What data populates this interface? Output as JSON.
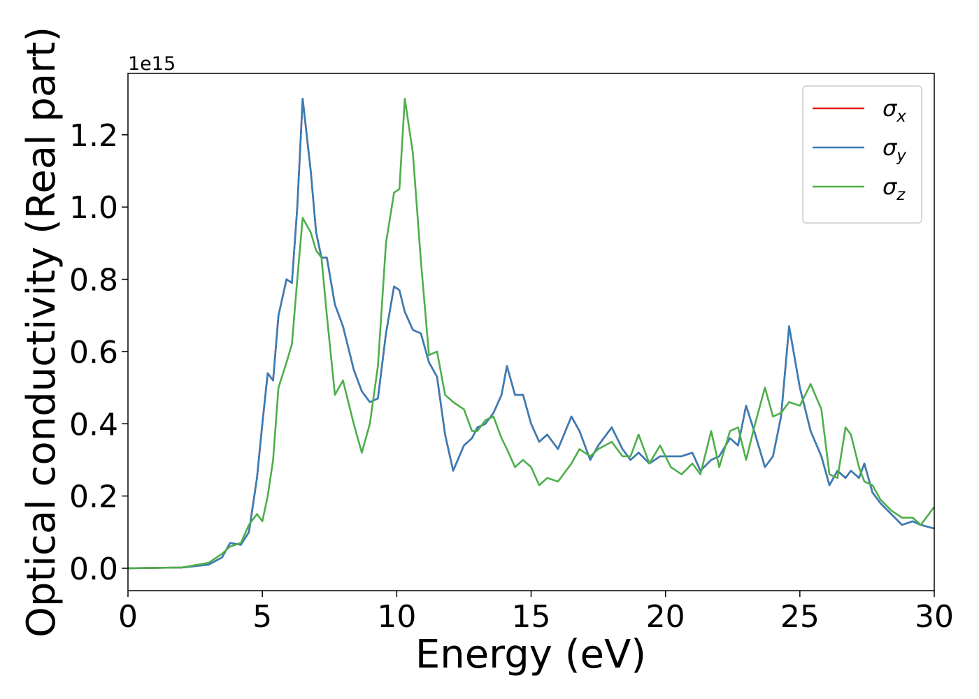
{
  "chart_data": {
    "type": "line",
    "xlabel": "Energy (eV)",
    "ylabel": "Optical conductivity (Real part)",
    "offset_text": "1e15",
    "x": [
      0,
      2,
      3,
      3.5,
      3.8,
      4.2,
      4.5,
      4.8,
      5.0,
      5.2,
      5.4,
      5.6,
      5.9,
      6.1,
      6.3,
      6.5,
      6.8,
      7.0,
      7.2,
      7.4,
      7.7,
      8.0,
      8.4,
      8.7,
      9.0,
      9.3,
      9.6,
      9.9,
      10.1,
      10.3,
      10.6,
      10.9,
      11.2,
      11.5,
      11.8,
      12.1,
      12.5,
      12.8,
      13.0,
      13.3,
      13.6,
      13.9,
      14.1,
      14.4,
      14.7,
      15.0,
      15.3,
      15.6,
      16.0,
      16.5,
      16.8,
      17.2,
      17.5,
      18.0,
      18.4,
      18.7,
      19.0,
      19.4,
      19.8,
      20.2,
      20.6,
      21.0,
      21.3,
      21.7,
      22.0,
      22.4,
      22.7,
      23.0,
      23.3,
      23.7,
      24.0,
      24.3,
      24.6,
      25.0,
      25.4,
      25.8,
      26.1,
      26.4,
      26.7,
      26.9,
      27.2,
      27.4,
      27.7,
      28.0,
      28.4,
      28.8,
      29.2,
      29.5,
      30.0
    ],
    "series": [
      {
        "name": "σx",
        "color": "#e41a1c",
        "values": [
          0,
          0.002,
          0.01,
          0.03,
          0.07,
          0.065,
          0.1,
          0.25,
          0.4,
          0.54,
          0.52,
          0.7,
          0.8,
          0.79,
          1.0,
          1.3,
          1.1,
          0.93,
          0.86,
          0.86,
          0.73,
          0.67,
          0.55,
          0.49,
          0.46,
          0.47,
          0.65,
          0.78,
          0.77,
          0.71,
          0.66,
          0.65,
          0.57,
          0.53,
          0.37,
          0.27,
          0.34,
          0.36,
          0.39,
          0.4,
          0.43,
          0.48,
          0.56,
          0.48,
          0.48,
          0.4,
          0.35,
          0.37,
          0.33,
          0.42,
          0.38,
          0.3,
          0.34,
          0.39,
          0.33,
          0.3,
          0.32,
          0.29,
          0.31,
          0.31,
          0.31,
          0.32,
          0.27,
          0.3,
          0.31,
          0.36,
          0.34,
          0.45,
          0.38,
          0.28,
          0.31,
          0.42,
          0.67,
          0.5,
          0.38,
          0.31,
          0.23,
          0.27,
          0.25,
          0.27,
          0.25,
          0.29,
          0.21,
          0.18,
          0.15,
          0.12,
          0.13,
          0.12,
          0.11
        ]
      },
      {
        "name": "σy",
        "color": "#377eb8",
        "values": [
          0,
          0.002,
          0.01,
          0.03,
          0.07,
          0.065,
          0.1,
          0.25,
          0.4,
          0.54,
          0.52,
          0.7,
          0.8,
          0.79,
          1.0,
          1.3,
          1.1,
          0.93,
          0.86,
          0.86,
          0.73,
          0.67,
          0.55,
          0.49,
          0.46,
          0.47,
          0.65,
          0.78,
          0.77,
          0.71,
          0.66,
          0.65,
          0.57,
          0.53,
          0.37,
          0.27,
          0.34,
          0.36,
          0.39,
          0.4,
          0.43,
          0.48,
          0.56,
          0.48,
          0.48,
          0.4,
          0.35,
          0.37,
          0.33,
          0.42,
          0.38,
          0.3,
          0.34,
          0.39,
          0.33,
          0.3,
          0.32,
          0.29,
          0.31,
          0.31,
          0.31,
          0.32,
          0.27,
          0.3,
          0.31,
          0.36,
          0.34,
          0.45,
          0.38,
          0.28,
          0.31,
          0.42,
          0.67,
          0.5,
          0.38,
          0.31,
          0.23,
          0.27,
          0.25,
          0.27,
          0.25,
          0.29,
          0.21,
          0.18,
          0.15,
          0.12,
          0.13,
          0.12,
          0.11
        ]
      },
      {
        "name": "σz",
        "color": "#4daf4a",
        "values": [
          0,
          0.002,
          0.015,
          0.04,
          0.06,
          0.07,
          0.12,
          0.15,
          0.13,
          0.2,
          0.3,
          0.5,
          0.57,
          0.62,
          0.8,
          0.97,
          0.93,
          0.88,
          0.86,
          0.7,
          0.48,
          0.52,
          0.4,
          0.32,
          0.4,
          0.56,
          0.9,
          1.04,
          1.05,
          1.3,
          1.15,
          0.85,
          0.59,
          0.6,
          0.48,
          0.46,
          0.44,
          0.38,
          0.38,
          0.41,
          0.42,
          0.36,
          0.33,
          0.28,
          0.3,
          0.28,
          0.23,
          0.25,
          0.24,
          0.29,
          0.33,
          0.31,
          0.33,
          0.35,
          0.31,
          0.31,
          0.37,
          0.29,
          0.34,
          0.28,
          0.26,
          0.29,
          0.26,
          0.38,
          0.28,
          0.38,
          0.39,
          0.3,
          0.39,
          0.5,
          0.42,
          0.43,
          0.46,
          0.45,
          0.51,
          0.44,
          0.26,
          0.25,
          0.39,
          0.37,
          0.28,
          0.24,
          0.23,
          0.19,
          0.16,
          0.14,
          0.14,
          0.12,
          0.17
        ]
      }
    ],
    "xlim": [
      0,
      30
    ],
    "xticks": [
      0,
      5,
      10,
      15,
      20,
      25,
      30
    ],
    "ylim": [
      -0.062,
      1.37
    ],
    "yticks": [
      {
        "value": 0,
        "label": "0.0"
      },
      0.2,
      0.4,
      0.6,
      0.8,
      {
        "value": 1,
        "label": "1.0"
      },
      1.2
    ],
    "grid": false,
    "legend": "upper right"
  }
}
